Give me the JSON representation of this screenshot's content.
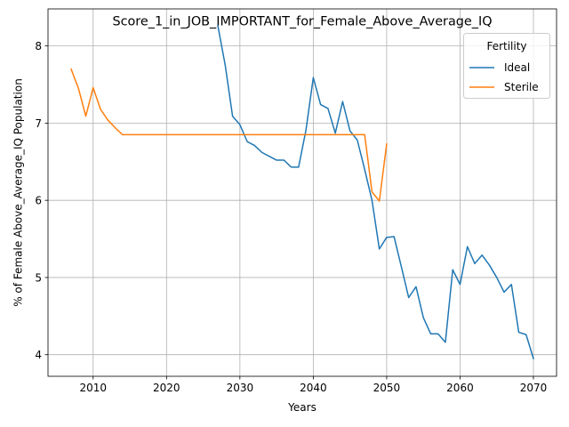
{
  "chart_data": {
    "type": "line",
    "title": "Score_1_in_JOB_IMPORTANT_for_Female_Above_Average_IQ",
    "xlabel": "Years",
    "ylabel": "% of Female Above_Average_IQ Population",
    "xlim": [
      2003.85,
      2073.15
    ],
    "ylim": [
      3.72,
      8.48
    ],
    "grid": true,
    "x_ticks": [
      2010,
      2020,
      2030,
      2040,
      2050,
      2060,
      2070
    ],
    "y_ticks": [
      4,
      5,
      6,
      7,
      8
    ],
    "legend": {
      "title": "Fertility",
      "placement": "top-right"
    },
    "series": [
      {
        "name": "Ideal",
        "color": "#1f77b4",
        "x": [
          2027,
          2028,
          2029,
          2030,
          2031,
          2032,
          2033,
          2034,
          2035,
          2036,
          2037,
          2038,
          2039,
          2040,
          2041,
          2042,
          2043,
          2044,
          2045,
          2046,
          2047,
          2048,
          2049,
          2050,
          2051,
          2052,
          2053,
          2054,
          2055,
          2056,
          2057,
          2058,
          2059,
          2060,
          2061,
          2062,
          2063,
          2064,
          2065,
          2066,
          2067,
          2068,
          2069,
          2070
        ],
        "y": [
          8.26,
          7.75,
          7.09,
          6.98,
          6.76,
          6.71,
          6.62,
          6.57,
          6.52,
          6.52,
          6.43,
          6.43,
          6.91,
          7.59,
          7.24,
          7.19,
          6.87,
          7.28,
          6.9,
          6.78,
          6.4,
          6.0,
          5.37,
          5.52,
          5.53,
          5.14,
          4.74,
          4.88,
          4.48,
          4.27,
          4.27,
          4.16,
          5.1,
          4.91,
          5.4,
          5.18,
          5.29,
          5.16,
          5.0,
          4.81,
          4.91,
          4.29,
          4.26,
          3.95
        ]
      },
      {
        "name": "Sterile",
        "color": "#ff7f0e",
        "x": [
          2007,
          2008,
          2009,
          2010,
          2011,
          2012,
          2013,
          2014,
          2015,
          2016,
          2017,
          2018,
          2019,
          2020,
          2021,
          2022,
          2023,
          2024,
          2025,
          2026,
          2027,
          2028,
          2029,
          2030,
          2031,
          2032,
          2033,
          2034,
          2035,
          2036,
          2037,
          2038,
          2039,
          2040,
          2041,
          2042,
          2043,
          2044,
          2045,
          2046,
          2047,
          2048,
          2049,
          2050
        ],
        "y": [
          7.7,
          7.45,
          7.09,
          7.46,
          7.18,
          7.04,
          6.94,
          6.85,
          6.85,
          6.85,
          6.85,
          6.85,
          6.85,
          6.85,
          6.85,
          6.85,
          6.85,
          6.85,
          6.85,
          6.85,
          6.85,
          6.85,
          6.85,
          6.85,
          6.85,
          6.85,
          6.85,
          6.85,
          6.85,
          6.85,
          6.85,
          6.85,
          6.85,
          6.85,
          6.85,
          6.85,
          6.85,
          6.85,
          6.85,
          6.85,
          6.85,
          6.11,
          5.99,
          6.73
        ]
      }
    ]
  }
}
